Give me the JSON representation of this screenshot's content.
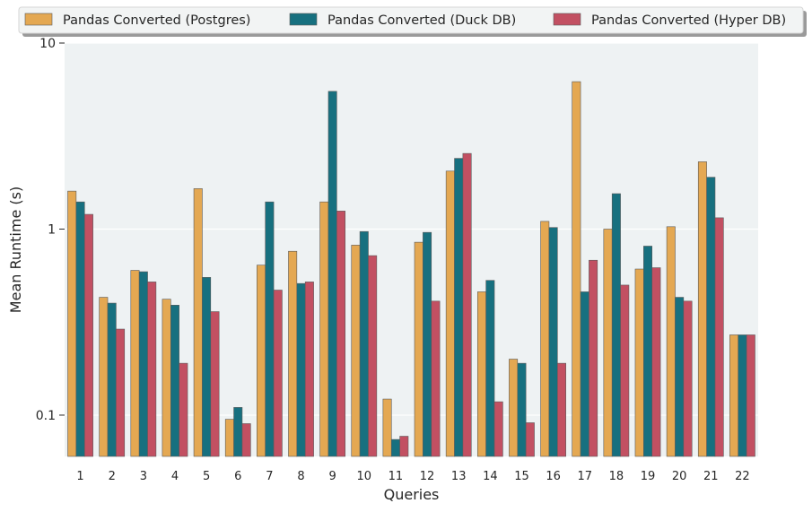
{
  "chart_data": {
    "type": "bar",
    "title": "",
    "xlabel": "Queries",
    "ylabel": "Mean Runtime (s)",
    "yscale": "log",
    "ylim": [
      0.06,
      10
    ],
    "yticks": [
      {
        "value": 0.1,
        "label": "0.1"
      },
      {
        "value": 1,
        "label": "1"
      },
      {
        "value": 10,
        "label": "10"
      }
    ],
    "grid": true,
    "legend_position": "top",
    "categories": [
      "1",
      "2",
      "3",
      "4",
      "5",
      "6",
      "7",
      "8",
      "9",
      "10",
      "11",
      "12",
      "13",
      "14",
      "15",
      "16",
      "17",
      "18",
      "19",
      "20",
      "21",
      "22"
    ],
    "series": [
      {
        "name": "Pandas Converted (Postgres)",
        "color": "#E4A852",
        "values": [
          1.6,
          0.43,
          0.6,
          0.42,
          1.65,
          0.095,
          0.64,
          0.76,
          1.4,
          0.82,
          0.122,
          0.85,
          2.05,
          0.46,
          0.2,
          1.1,
          6.2,
          1.0,
          0.61,
          1.03,
          2.3,
          0.27
        ]
      },
      {
        "name": "Pandas Converted (Duck DB)",
        "color": "#17707F",
        "values": [
          1.4,
          0.4,
          0.59,
          0.39,
          0.55,
          0.11,
          1.4,
          0.51,
          5.5,
          0.97,
          0.074,
          0.96,
          2.4,
          0.53,
          0.19,
          1.02,
          0.46,
          1.55,
          0.81,
          0.43,
          1.9,
          0.27
        ]
      },
      {
        "name": "Pandas Converted (Hyper DB)",
        "color": "#C25062",
        "values": [
          1.2,
          0.29,
          0.52,
          0.19,
          0.36,
          0.09,
          0.47,
          0.52,
          1.25,
          0.72,
          0.077,
          0.41,
          2.55,
          0.118,
          0.091,
          0.19,
          0.68,
          0.5,
          0.62,
          0.41,
          1.15,
          0.27
        ]
      }
    ]
  }
}
